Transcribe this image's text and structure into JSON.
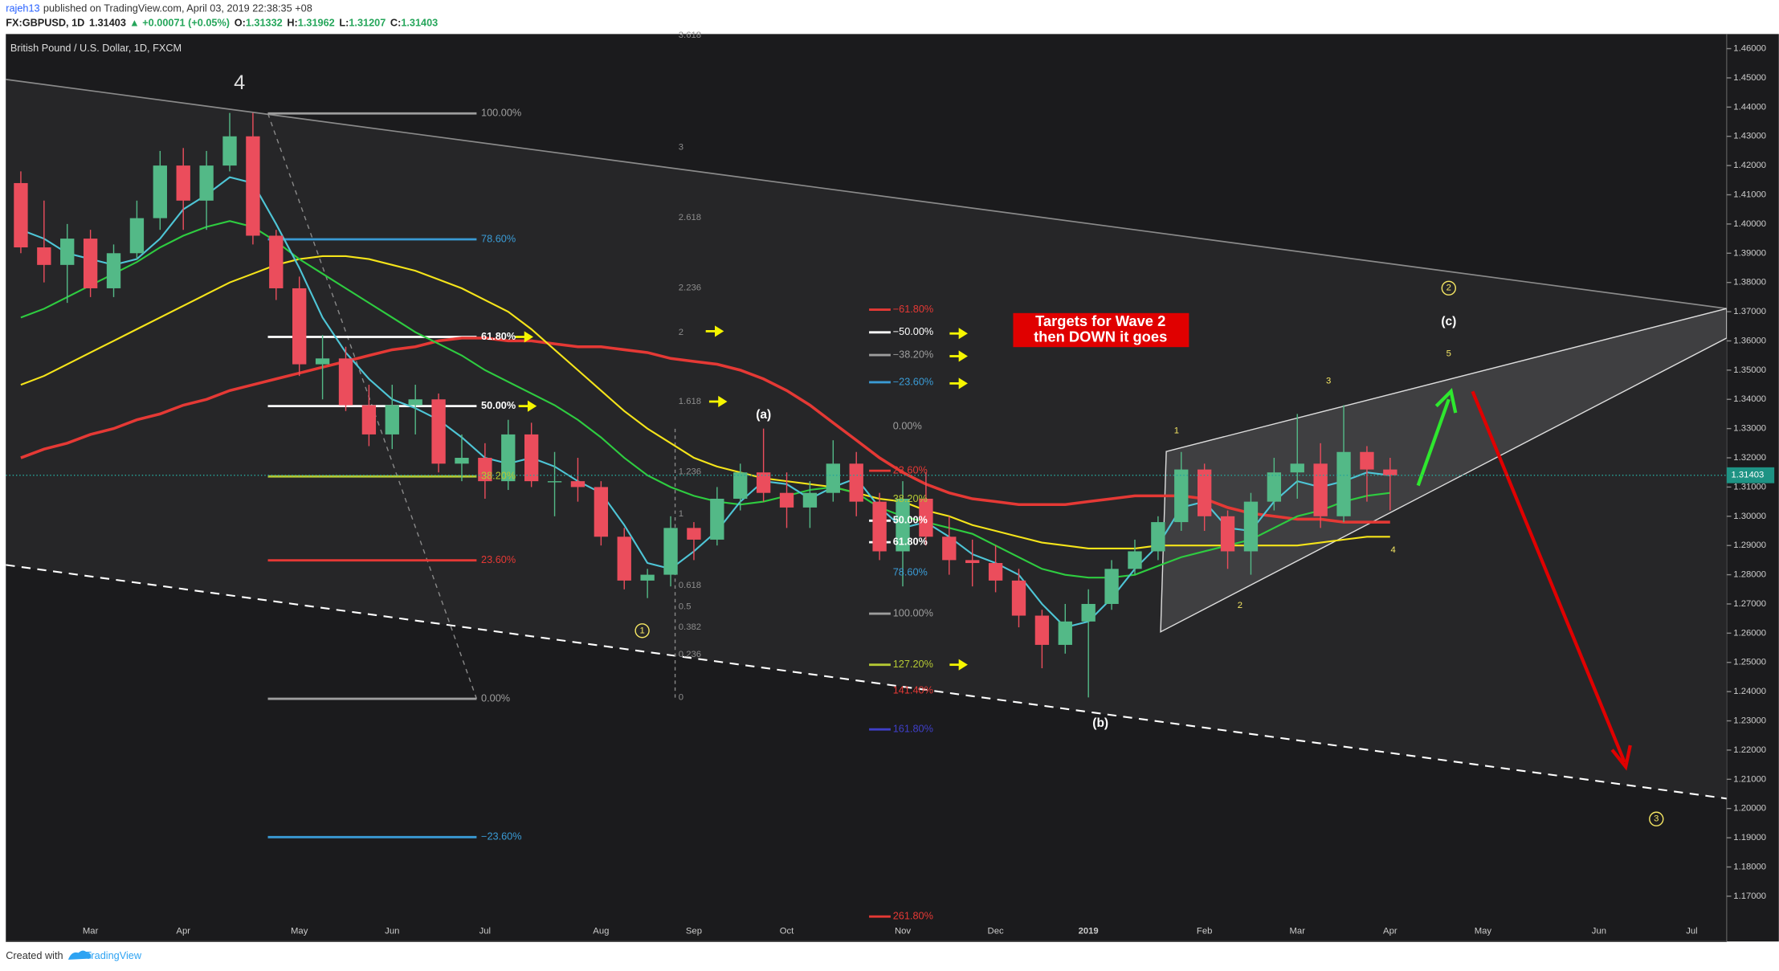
{
  "header": {
    "author": "rajeh13",
    "published": "published on TradingView.com, April 03, 2019 22:38:35 +08",
    "symbol": "FX:GBPUSD, 1D",
    "last": "1.31403",
    "change": "▲ +0.00071 (+0.05%)",
    "ohlc": [
      {
        "label": "O:",
        "value": "1.31332"
      },
      {
        "label": "H:",
        "value": "1.31962"
      },
      {
        "label": "L:",
        "value": "1.31207"
      },
      {
        "label": "C:",
        "value": "1.31403"
      }
    ]
  },
  "footer": {
    "created": "Created with",
    "brand": "TradingView"
  },
  "chart_data": {
    "type": "candlestick",
    "title": "British Pound / U.S. Dollar, 1D, FXCM",
    "up_color": "#53b987",
    "down_color": "#eb4d5c",
    "categories": [
      null,
      null,
      null,
      "Mar",
      null,
      null,
      null,
      "Apr",
      null,
      null,
      null,
      null,
      "May",
      null,
      null,
      null,
      "Jun",
      null,
      null,
      null,
      "Jul",
      null,
      null,
      null,
      null,
      "Aug",
      null,
      null,
      null,
      "Sep",
      null,
      null,
      null,
      "Oct",
      null,
      null,
      null,
      null,
      "Nov",
      null,
      null,
      null,
      "Dec",
      null,
      null,
      null,
      "2019",
      null,
      null,
      null,
      null,
      "Feb",
      null,
      null,
      null,
      "Mar",
      null,
      null,
      null,
      "Apr",
      null,
      null,
      null,
      "May",
      null,
      null,
      null,
      null,
      "Jun",
      null,
      null,
      null,
      "Jul",
      null
    ],
    "open": [
      1.414,
      1.392,
      1.386,
      1.395,
      1.378,
      1.39,
      1.402,
      1.42,
      1.408,
      1.42,
      1.43,
      1.396,
      1.378,
      1.352,
      1.354,
      1.338,
      1.328,
      1.338,
      1.34,
      1.318,
      1.32,
      1.312,
      1.328,
      1.312,
      1.312,
      1.31,
      1.293,
      1.278,
      1.28,
      1.296,
      1.292,
      1.306,
      1.315,
      1.308,
      1.303,
      1.308,
      1.318,
      1.305,
      1.288,
      1.306,
      1.293,
      1.285,
      1.284,
      1.278,
      1.266,
      1.256,
      1.264,
      1.27,
      1.282,
      1.288,
      1.298,
      1.316,
      1.3,
      1.288,
      1.305,
      1.315,
      1.318,
      1.3,
      1.322,
      1.316,
      null,
      null,
      null,
      null,
      null,
      null,
      null,
      null,
      null,
      null,
      null,
      null,
      null,
      null
    ],
    "high": [
      1.418,
      1.408,
      1.4,
      1.398,
      1.393,
      1.408,
      1.425,
      1.426,
      1.425,
      1.438,
      1.438,
      1.398,
      1.382,
      1.362,
      1.358,
      1.345,
      1.345,
      1.345,
      1.342,
      1.328,
      1.325,
      1.333,
      1.332,
      1.322,
      1.32,
      1.312,
      1.296,
      1.282,
      1.3,
      1.298,
      1.31,
      1.318,
      1.33,
      1.315,
      1.312,
      1.326,
      1.322,
      1.308,
      1.312,
      1.315,
      1.3,
      1.292,
      1.29,
      1.282,
      1.268,
      1.27,
      1.275,
      1.285,
      1.292,
      1.3,
      1.322,
      1.318,
      1.302,
      1.308,
      1.32,
      1.335,
      1.325,
      1.338,
      1.324,
      1.32,
      null,
      null,
      null,
      null,
      null,
      null,
      null,
      null,
      null,
      null,
      null,
      null,
      null,
      null
    ],
    "low": [
      1.39,
      1.38,
      1.373,
      1.375,
      1.375,
      1.388,
      1.398,
      1.398,
      1.398,
      1.418,
      1.393,
      1.374,
      1.348,
      1.34,
      1.336,
      1.324,
      1.323,
      1.328,
      1.315,
      1.312,
      1.306,
      1.309,
      1.31,
      1.3,
      1.305,
      1.29,
      1.275,
      1.272,
      1.276,
      1.285,
      1.29,
      1.302,
      1.305,
      1.296,
      1.296,
      1.305,
      1.3,
      1.285,
      1.276,
      1.29,
      1.28,
      1.276,
      1.274,
      1.262,
      1.248,
      1.253,
      1.238,
      1.268,
      1.28,
      1.285,
      1.295,
      1.295,
      1.282,
      1.28,
      1.302,
      1.306,
      1.296,
      1.298,
      1.305,
      1.302,
      null,
      null,
      null,
      null,
      null,
      null,
      null,
      null,
      null,
      null,
      null,
      null,
      null,
      null
    ],
    "close": [
      1.392,
      1.386,
      1.395,
      1.378,
      1.39,
      1.402,
      1.42,
      1.408,
      1.42,
      1.43,
      1.396,
      1.378,
      1.352,
      1.354,
      1.338,
      1.328,
      1.338,
      1.34,
      1.318,
      1.32,
      1.312,
      1.328,
      1.312,
      1.312,
      1.31,
      1.293,
      1.278,
      1.28,
      1.296,
      1.292,
      1.306,
      1.315,
      1.308,
      1.303,
      1.308,
      1.318,
      1.305,
      1.288,
      1.306,
      1.293,
      1.285,
      1.284,
      1.278,
      1.266,
      1.256,
      1.264,
      1.27,
      1.282,
      1.288,
      1.298,
      1.316,
      1.3,
      1.288,
      1.305,
      1.315,
      1.318,
      1.3,
      1.322,
      1.316,
      1.314,
      null,
      null,
      null,
      null,
      null,
      null,
      null,
      null,
      null,
      null,
      null,
      null,
      null,
      null
    ],
    "lines": [
      {
        "color": "#e53935",
        "values": [
          1.32,
          1.323,
          1.325,
          1.328,
          1.33,
          1.333,
          1.335,
          1.338,
          1.34,
          1.343,
          1.345,
          1.347,
          1.349,
          1.351,
          1.353,
          1.355,
          1.357,
          1.358,
          1.36,
          1.361,
          1.361,
          1.36,
          1.36,
          1.359,
          1.358,
          1.358,
          1.357,
          1.356,
          1.354,
          1.353,
          1.352,
          1.35,
          1.347,
          1.343,
          1.338,
          1.332,
          1.326,
          1.32,
          1.315,
          1.311,
          1.308,
          1.306,
          1.305,
          1.304,
          1.304,
          1.304,
          1.305,
          1.306,
          1.307,
          1.307,
          1.307,
          1.306,
          1.303,
          1.301,
          1.3,
          1.299,
          1.299,
          1.298,
          1.298,
          1.298,
          null,
          null,
          null,
          null,
          null,
          null,
          null,
          null,
          null,
          null,
          null,
          null,
          null,
          null
        ]
      },
      {
        "color": "#f5e41a",
        "values": [
          1.345,
          1.348,
          1.352,
          1.356,
          1.36,
          1.364,
          1.368,
          1.372,
          1.376,
          1.38,
          1.383,
          1.386,
          1.388,
          1.389,
          1.389,
          1.388,
          1.386,
          1.384,
          1.381,
          1.378,
          1.374,
          1.37,
          1.364,
          1.357,
          1.35,
          1.343,
          1.336,
          1.33,
          1.325,
          1.32,
          1.317,
          1.315,
          1.313,
          1.312,
          1.311,
          1.31,
          1.308,
          1.306,
          1.305,
          1.302,
          1.3,
          1.297,
          1.295,
          1.293,
          1.291,
          1.29,
          1.289,
          1.289,
          1.289,
          1.29,
          1.29,
          1.29,
          1.29,
          1.29,
          1.29,
          1.29,
          1.291,
          1.292,
          1.293,
          1.293,
          null,
          null,
          null,
          null,
          null,
          null,
          null,
          null,
          null,
          null,
          null,
          null,
          null,
          null
        ]
      },
      {
        "color": "#2ecc40",
        "values": [
          1.368,
          1.371,
          1.375,
          1.379,
          1.383,
          1.387,
          1.392,
          1.396,
          1.399,
          1.401,
          1.399,
          1.394,
          1.388,
          1.383,
          1.378,
          1.373,
          1.368,
          1.363,
          1.359,
          1.355,
          1.35,
          1.346,
          1.342,
          1.338,
          1.333,
          1.327,
          1.32,
          1.314,
          1.31,
          1.307,
          1.305,
          1.304,
          1.305,
          1.307,
          1.309,
          1.31,
          1.308,
          1.303,
          1.3,
          1.298,
          1.296,
          1.294,
          1.29,
          1.286,
          1.282,
          1.28,
          1.279,
          1.279,
          1.28,
          1.283,
          1.286,
          1.288,
          1.29,
          1.292,
          1.296,
          1.3,
          1.302,
          1.305,
          1.307,
          1.308,
          null,
          null,
          null,
          null,
          null,
          null,
          null,
          null,
          null,
          null,
          null,
          null,
          null,
          null
        ]
      },
      {
        "color": "#4ec5d6",
        "values": [
          1.398,
          1.395,
          1.39,
          1.388,
          1.386,
          1.388,
          1.395,
          1.405,
          1.41,
          1.416,
          1.414,
          1.4,
          1.385,
          1.368,
          1.356,
          1.347,
          1.34,
          1.337,
          1.333,
          1.327,
          1.32,
          1.318,
          1.32,
          1.317,
          1.312,
          1.308,
          1.297,
          1.284,
          1.282,
          1.288,
          1.295,
          1.305,
          1.312,
          1.311,
          1.306,
          1.31,
          1.313,
          1.303,
          1.296,
          1.298,
          1.293,
          1.287,
          1.284,
          1.28,
          1.27,
          1.262,
          1.264,
          1.272,
          1.282,
          1.29,
          1.303,
          1.305,
          1.296,
          1.295,
          1.305,
          1.312,
          1.31,
          1.312,
          1.315,
          1.314,
          null,
          null,
          null,
          null,
          null,
          null,
          null,
          null,
          null,
          null,
          null,
          null,
          null,
          null
        ]
      }
    ],
    "ylim": [
      1.1545,
      1.465
    ],
    "yticks": [
      {
        "value": 1.17,
        "label": "1.17000"
      },
      {
        "value": 1.18,
        "label": "1.18000"
      },
      {
        "value": 1.19,
        "label": "1.19000"
      },
      {
        "value": 1.2,
        "label": "1.20000"
      },
      {
        "value": 1.21,
        "label": "1.21000"
      },
      {
        "value": 1.22,
        "label": "1.22000"
      },
      {
        "value": 1.23,
        "label": "1.23000"
      },
      {
        "value": 1.24,
        "label": "1.24000"
      },
      {
        "value": 1.25,
        "label": "1.25000"
      },
      {
        "value": 1.26,
        "label": "1.26000"
      },
      {
        "value": 1.27,
        "label": "1.27000"
      },
      {
        "value": 1.28,
        "label": "1.28000"
      },
      {
        "value": 1.29,
        "label": "1.29000"
      },
      {
        "value": 1.3,
        "label": "1.30000"
      },
      {
        "value": 1.31,
        "label": "1.31000"
      },
      {
        "value": 1.32,
        "label": "1.32000"
      },
      {
        "value": 1.33,
        "label": "1.33000"
      },
      {
        "value": 1.34,
        "label": "1.34000"
      },
      {
        "value": 1.35,
        "label": "1.35000"
      },
      {
        "value": 1.36,
        "label": "1.36000"
      },
      {
        "value": 1.37,
        "label": "1.37000"
      },
      {
        "value": 1.38,
        "label": "1.38000"
      },
      {
        "value": 1.39,
        "label": "1.39000"
      },
      {
        "value": 1.4,
        "label": "1.40000"
      },
      {
        "value": 1.41,
        "label": "1.41000"
      },
      {
        "value": 1.42,
        "label": "1.42000"
      },
      {
        "value": 1.43,
        "label": "1.43000"
      },
      {
        "value": 1.44,
        "label": "1.44000"
      },
      {
        "value": 1.45,
        "label": "1.45000"
      },
      {
        "value": 1.46,
        "label": "1.46000"
      }
    ],
    "grid": false,
    "last_price": {
      "value": 1.31403,
      "label": "1.31403"
    },
    "annotations": [
      "4",
      "100.00%",
      "78.60%",
      "61.80%",
      "50.00%",
      "38.20%",
      "23.60%",
      "0.00%",
      "−23.60%",
      "3.618",
      "3",
      "2.618",
      "2.236",
      "2",
      "1.618",
      "1.236",
      "1",
      "0.618",
      "0.5",
      "0.382",
      "0.236",
      "0",
      "(a)",
      "−61.80%",
      "−50.00%",
      "−38.20%",
      "−23.60%",
      "0.00%",
      "23.60%",
      "38.20%",
      "50.00%",
      "61.80%",
      "78.60%",
      "100.00%",
      "127.20%",
      "141.40%",
      "161.80%",
      "261.80%",
      "Targets for Wave 2",
      "then DOWN it goes",
      "(b)",
      "1",
      "2",
      "3",
      "4",
      "5",
      "(c)",
      "1",
      "2",
      "3"
    ]
  }
}
